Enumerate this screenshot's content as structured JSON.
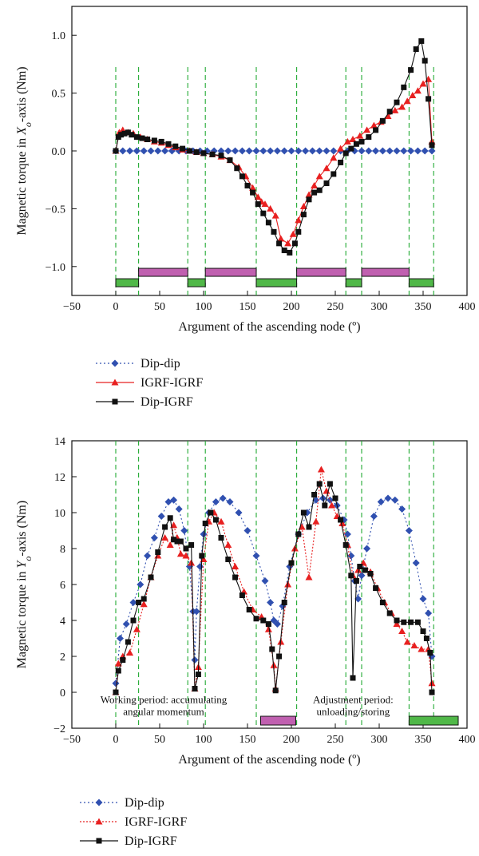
{
  "chart_data": [
    {
      "type": "line",
      "xlabel": "Argument of the ascending node (º)",
      "ylabel_pre": "Magnetic torque in ",
      "ylabel_var": "X",
      "ylabel_sub": "o",
      "ylabel_post": "-axis (Nm)",
      "xlim": [
        -50,
        400
      ],
      "ylim": [
        -1.25,
        1.25
      ],
      "xticks": [
        -50,
        0,
        50,
        100,
        150,
        200,
        250,
        300,
        350,
        400
      ],
      "yticks": [
        -1.0,
        -0.5,
        0.0,
        0.5,
        1.0
      ],
      "ytick_labels": [
        "−1.0",
        "−0.5",
        "0.0",
        "0.5",
        "1.0"
      ],
      "period_lines": [
        0,
        26,
        82,
        102,
        160,
        206,
        262,
        280,
        334,
        362
      ],
      "period_bars": [
        {
          "start": 0,
          "end": 26,
          "kind": "adjustment",
          "row": "low"
        },
        {
          "start": 26,
          "end": 82,
          "kind": "working",
          "row": "high"
        },
        {
          "start": 82,
          "end": 102,
          "kind": "adjustment",
          "row": "low"
        },
        {
          "start": 102,
          "end": 160,
          "kind": "working",
          "row": "high"
        },
        {
          "start": 160,
          "end": 206,
          "kind": "adjustment",
          "row": "low"
        },
        {
          "start": 206,
          "end": 262,
          "kind": "working",
          "row": "high"
        },
        {
          "start": 262,
          "end": 280,
          "kind": "adjustment",
          "row": "low"
        },
        {
          "start": 280,
          "end": 334,
          "kind": "working",
          "row": "high"
        },
        {
          "start": 334,
          "end": 362,
          "kind": "adjustment",
          "row": "low"
        }
      ],
      "bar_levels": {
        "high": -1.05,
        "low": -1.14
      },
      "series": [
        {
          "name": "Dip-dip",
          "color": "#3050b0",
          "marker": "diamond",
          "dash": "2,3",
          "x": [
            0,
            8,
            16,
            24,
            32,
            40,
            48,
            56,
            64,
            72,
            80,
            88,
            96,
            104,
            112,
            120,
            128,
            136,
            144,
            152,
            160,
            168,
            176,
            184,
            192,
            200,
            208,
            216,
            224,
            232,
            240,
            248,
            256,
            264,
            272,
            280,
            288,
            296,
            304,
            312,
            320,
            328,
            336,
            344,
            352,
            360
          ],
          "y": [
            0,
            0,
            0,
            0,
            0,
            0,
            0,
            0,
            0,
            0,
            0,
            0,
            0,
            0,
            0,
            0,
            0,
            0,
            0,
            0,
            0,
            0,
            0,
            0,
            0,
            0,
            0,
            0,
            0,
            0,
            0,
            0,
            0,
            0,
            0,
            0,
            0,
            0,
            0,
            0,
            0,
            0,
            0,
            0,
            0,
            0
          ]
        },
        {
          "name": "IGRF-IGRF",
          "color": "#e82020",
          "marker": "triangle",
          "dash": "",
          "x": [
            0,
            4,
            8,
            14,
            20,
            28,
            36,
            44,
            52,
            60,
            68,
            76,
            84,
            92,
            100,
            110,
            120,
            130,
            140,
            148,
            156,
            162,
            166,
            170,
            176,
            182,
            188,
            196,
            202,
            208,
            214,
            220,
            226,
            232,
            240,
            248,
            256,
            264,
            270,
            278,
            286,
            294,
            302,
            310,
            318,
            326,
            332,
            338,
            344,
            350,
            356,
            360
          ],
          "y": [
            0,
            0.16,
            0.18,
            0.16,
            0.15,
            0.12,
            0.1,
            0.08,
            0.07,
            0.05,
            0.03,
            0.01,
            0,
            -0.01,
            -0.02,
            -0.03,
            -0.05,
            -0.08,
            -0.14,
            -0.22,
            -0.32,
            -0.4,
            -0.44,
            -0.46,
            -0.5,
            -0.56,
            -0.76,
            -0.8,
            -0.72,
            -0.6,
            -0.48,
            -0.38,
            -0.3,
            -0.22,
            -0.15,
            -0.06,
            0.02,
            0.08,
            0.1,
            0.13,
            0.18,
            0.22,
            0.25,
            0.3,
            0.35,
            0.38,
            0.43,
            0.48,
            0.52,
            0.58,
            0.62,
            0.08
          ]
        },
        {
          "name": "Dip-IGRF",
          "color": "#111111",
          "marker": "square",
          "dash": "",
          "x": [
            0,
            3,
            6,
            10,
            14,
            18,
            24,
            30,
            36,
            44,
            52,
            60,
            68,
            76,
            84,
            92,
            100,
            110,
            120,
            130,
            138,
            144,
            150,
            156,
            162,
            168,
            174,
            180,
            186,
            192,
            198,
            204,
            208,
            214,
            220,
            226,
            232,
            240,
            248,
            256,
            262,
            268,
            274,
            280,
            288,
            296,
            304,
            312,
            320,
            328,
            336,
            342,
            348,
            352,
            356,
            360
          ],
          "y": [
            0,
            0.12,
            0.14,
            0.15,
            0.16,
            0.14,
            0.12,
            0.11,
            0.1,
            0.09,
            0.08,
            0.06,
            0.04,
            0.02,
            0,
            -0.01,
            -0.02,
            -0.03,
            -0.04,
            -0.08,
            -0.15,
            -0.22,
            -0.3,
            -0.36,
            -0.46,
            -0.54,
            -0.62,
            -0.7,
            -0.8,
            -0.86,
            -0.88,
            -0.8,
            -0.7,
            -0.55,
            -0.42,
            -0.36,
            -0.34,
            -0.28,
            -0.2,
            -0.1,
            -0.02,
            0.02,
            0.06,
            0.08,
            0.12,
            0.18,
            0.26,
            0.34,
            0.42,
            0.55,
            0.7,
            0.88,
            0.95,
            0.78,
            0.45,
            0.05
          ]
        }
      ],
      "legend": [
        {
          "label": "Dip-dip",
          "series": 0
        },
        {
          "label": "IGRF-IGRF",
          "series": 1
        },
        {
          "label": "Dip-IGRF",
          "series": 2
        }
      ]
    },
    {
      "type": "line",
      "xlabel": "Argument of the ascending node (º)",
      "ylabel_pre": "Magnetic torque in ",
      "ylabel_var": "Y",
      "ylabel_sub": "o",
      "ylabel_post": "-axis (Nm)",
      "xlim": [
        -50,
        400
      ],
      "ylim": [
        -2,
        14
      ],
      "xticks": [
        -50,
        0,
        50,
        100,
        150,
        200,
        250,
        300,
        350,
        400
      ],
      "yticks": [
        -2,
        0,
        2,
        4,
        6,
        8,
        10,
        12,
        14
      ],
      "ytick_labels": [
        "−2",
        "0",
        "2",
        "4",
        "6",
        "8",
        "10",
        "12",
        "14"
      ],
      "period_lines": [
        0,
        26,
        82,
        102,
        160,
        206,
        262,
        280,
        334,
        362
      ],
      "annotations": [
        {
          "text_line1": "Working period: accumulating",
          "text_line2": "angular momentum",
          "bar_kind": "working",
          "bar_start": 165,
          "bar_end": 205,
          "bar_y": -1.6
        },
        {
          "text_line1": "Adjustment period:",
          "text_line2": "unloading/storing",
          "bar_kind": "adjustment",
          "bar_start": 334,
          "bar_end": 390,
          "bar_y": -1.6
        }
      ],
      "series": [
        {
          "name": "Dip-dip",
          "color": "#3050b0",
          "marker": "diamond",
          "dash": "2,3",
          "x": [
            0,
            5,
            12,
            20,
            28,
            36,
            44,
            52,
            60,
            66,
            72,
            78,
            84,
            88,
            90,
            92,
            96,
            100,
            106,
            114,
            122,
            130,
            140,
            150,
            160,
            170,
            176,
            180,
            184,
            190,
            198,
            208,
            218,
            228,
            236,
            244,
            252,
            260,
            264,
            268,
            272,
            276,
            280,
            286,
            294,
            302,
            310,
            318,
            326,
            334,
            342,
            350,
            356,
            360
          ],
          "y": [
            0.5,
            3.0,
            3.8,
            5.0,
            6.0,
            7.6,
            8.6,
            9.8,
            10.6,
            10.7,
            10.2,
            9.0,
            7.0,
            4.5,
            1.8,
            4.5,
            7.0,
            8.8,
            10.0,
            10.6,
            10.8,
            10.6,
            10.0,
            9.0,
            7.6,
            6.2,
            5.0,
            4.0,
            3.8,
            4.8,
            7.0,
            8.8,
            10.0,
            10.7,
            10.8,
            10.7,
            10.4,
            9.6,
            8.8,
            7.6,
            6.2,
            5.2,
            6.5,
            8.0,
            9.8,
            10.6,
            10.8,
            10.7,
            10.2,
            9.0,
            7.2,
            5.2,
            4.4,
            2.0
          ]
        },
        {
          "name": "IGRF-IGRF",
          "color": "#e82020",
          "marker": "triangle",
          "dash": "2,2",
          "x": [
            0,
            3,
            8,
            16,
            24,
            32,
            40,
            48,
            56,
            62,
            66,
            70,
            74,
            80,
            86,
            90,
            94,
            100,
            106,
            112,
            120,
            128,
            136,
            146,
            156,
            166,
            174,
            180,
            182,
            188,
            196,
            204,
            212,
            220,
            228,
            234,
            240,
            246,
            252,
            258,
            264,
            270,
            276,
            282,
            290,
            298,
            306,
            314,
            320,
            326,
            332,
            340,
            348,
            356,
            360
          ],
          "y": [
            0,
            1.6,
            2.0,
            2.2,
            3.5,
            4.9,
            6.4,
            7.6,
            8.6,
            8.2,
            9.3,
            8.6,
            7.7,
            7.6,
            7.2,
            0.2,
            1.4,
            7.4,
            9.5,
            10.0,
            9.5,
            8.2,
            7.0,
            5.6,
            4.6,
            4.2,
            3.5,
            1.5,
            0.2,
            2.8,
            6.0,
            8.0,
            9.2,
            6.4,
            9.5,
            12.4,
            11.2,
            10.4,
            9.8,
            9.4,
            8.2,
            6.5,
            6.8,
            7.2,
            6.7,
            5.8,
            5.0,
            4.4,
            3.8,
            3.4,
            2.8,
            2.6,
            2.4,
            2.4,
            0.5
          ]
        },
        {
          "name": "Dip-IGRF",
          "color": "#111111",
          "marker": "square",
          "dash": "",
          "x": [
            0,
            3,
            8,
            14,
            20,
            26,
            32,
            40,
            48,
            56,
            62,
            66,
            70,
            74,
            80,
            86,
            90,
            94,
            98,
            102,
            108,
            114,
            120,
            128,
            136,
            144,
            152,
            160,
            168,
            174,
            178,
            182,
            186,
            192,
            200,
            208,
            214,
            220,
            226,
            232,
            238,
            244,
            250,
            256,
            262,
            268,
            270,
            274,
            278,
            284,
            290,
            296,
            304,
            312,
            320,
            328,
            336,
            344,
            350,
            354,
            358,
            360
          ],
          "y": [
            0,
            1.2,
            1.8,
            2.8,
            4.0,
            5.0,
            5.2,
            6.4,
            7.8,
            9.2,
            9.7,
            8.5,
            8.4,
            8.4,
            8.0,
            8.2,
            0.2,
            1.0,
            7.6,
            9.4,
            10.0,
            9.6,
            8.6,
            7.4,
            6.4,
            5.4,
            4.6,
            4.1,
            4.0,
            3.8,
            2.4,
            0.1,
            2.0,
            5.0,
            7.2,
            8.8,
            10.0,
            9.2,
            11.0,
            11.6,
            10.4,
            11.6,
            10.8,
            9.6,
            8.2,
            6.5,
            0.8,
            6.2,
            7.0,
            6.8,
            6.6,
            5.8,
            5.0,
            4.4,
            4.0,
            3.9,
            3.9,
            3.9,
            3.4,
            3.0,
            2.2,
            0
          ]
        }
      ],
      "legend": [
        {
          "label": "Dip-dip",
          "series": 0
        },
        {
          "label": "IGRF-IGRF",
          "series": 1
        },
        {
          "label": "Dip-IGRF",
          "series": 2
        }
      ]
    }
  ],
  "colors": {
    "working": "#c060b0",
    "adjustment": "#50b848",
    "period_line": "#22aa33"
  }
}
